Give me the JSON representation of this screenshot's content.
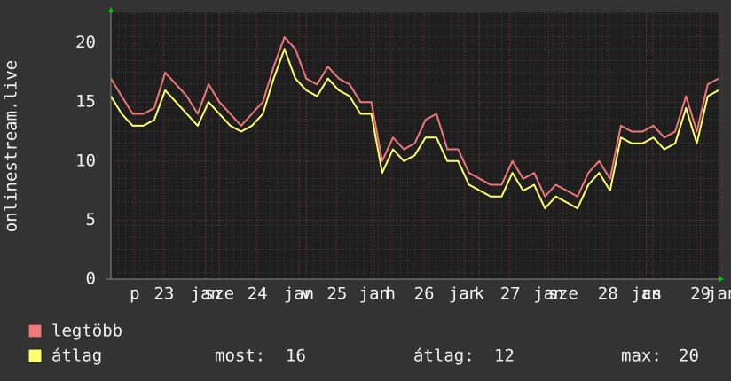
{
  "chart_data": {
    "type": "line",
    "ylabel": "onlinestream.live",
    "xlim": [
      0,
      168
    ],
    "ylim": [
      0,
      22.6
    ],
    "yticks": [
      0,
      5,
      10,
      15,
      20
    ],
    "xticks": [
      {
        "value": 6.6,
        "label": "p"
      },
      {
        "value": 14.7,
        "label": "23"
      },
      {
        "value": 26.2,
        "label": "jan"
      },
      {
        "value": 29.9,
        "label": "sze"
      },
      {
        "value": 40.5,
        "label": "24"
      },
      {
        "value": 52,
        "label": "jan"
      },
      {
        "value": 54,
        "label": "v"
      },
      {
        "value": 62.5,
        "label": "25"
      },
      {
        "value": 72.8,
        "label": "jan"
      },
      {
        "value": 77.3,
        "label": "h"
      },
      {
        "value": 86.6,
        "label": "26"
      },
      {
        "value": 97.6,
        "label": "jan"
      },
      {
        "value": 101.8,
        "label": "k"
      },
      {
        "value": 110.4,
        "label": "27"
      },
      {
        "value": 121,
        "label": "jan"
      },
      {
        "value": 125,
        "label": "sze"
      },
      {
        "value": 137.4,
        "label": "28"
      },
      {
        "value": 148,
        "label": "jan"
      },
      {
        "value": 149.6,
        "label": "cs"
      },
      {
        "value": 163,
        "label": "29"
      },
      {
        "value": 169,
        "label": "jan"
      }
    ],
    "grid": true,
    "x": [
      0,
      3,
      6,
      9,
      12,
      15,
      18,
      21,
      24,
      27,
      30,
      33,
      36,
      39,
      42,
      45,
      48,
      51,
      54,
      57,
      60,
      63,
      66,
      69,
      72,
      75,
      78,
      81,
      84,
      87,
      90,
      93,
      96,
      99,
      102,
      105,
      108,
      111,
      114,
      117,
      120,
      123,
      126,
      129,
      132,
      135,
      138,
      141,
      144,
      147,
      150,
      153,
      156,
      159,
      162,
      165,
      168
    ],
    "series": [
      {
        "name": "legtöbb",
        "color": "#f07878",
        "values": [
          17,
          15.5,
          14,
          14,
          14.5,
          17.5,
          16.5,
          15.5,
          14,
          16.5,
          15,
          14,
          13,
          14,
          15,
          18,
          20.5,
          19.5,
          17,
          16.5,
          18,
          17,
          16.5,
          15,
          15,
          10,
          12,
          11,
          11.5,
          13.5,
          14,
          11,
          11,
          9,
          8.5,
          8,
          8,
          10,
          8.5,
          9,
          7,
          8,
          7.5,
          7,
          9,
          10,
          8.5,
          13,
          12.5,
          12.5,
          13,
          12,
          12.5,
          15.5,
          12.5,
          16.5,
          17
        ]
      },
      {
        "name": "átlag",
        "color": "#ffff70",
        "values": [
          15.5,
          14,
          13,
          13,
          13.5,
          16,
          15,
          14,
          13,
          15,
          14,
          13,
          12.5,
          13,
          14,
          17,
          19.5,
          17,
          16,
          15.5,
          17,
          16,
          15.5,
          14,
          14,
          9,
          11,
          10,
          10.5,
          12,
          12,
          10,
          10,
          8,
          7.5,
          7,
          7,
          9,
          7.5,
          8,
          6,
          7,
          6.5,
          6,
          8,
          9,
          7.5,
          12,
          11.5,
          11.5,
          12,
          11,
          11.5,
          14.5,
          11.5,
          15.5,
          16
        ]
      }
    ],
    "stats": [
      {
        "label": "most:",
        "value": 16
      },
      {
        "label": "átlag:",
        "value": 12
      },
      {
        "label": "max:",
        "value": 20
      }
    ]
  }
}
